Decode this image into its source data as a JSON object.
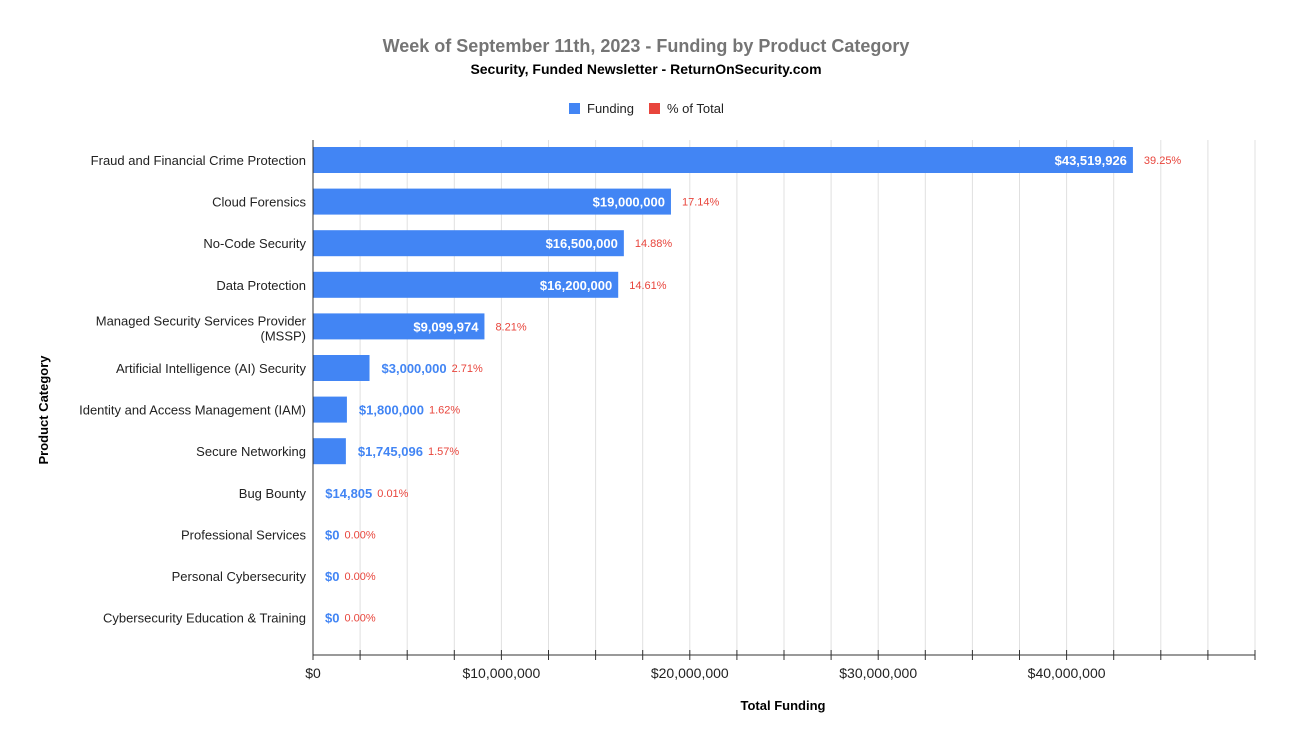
{
  "chart_data": {
    "type": "bar",
    "orientation": "horizontal",
    "title": "Week of September 11th, 2023 - Funding by Product Category",
    "subtitle": "Security, Funded Newsletter - ReturnOnSecurity.com",
    "xlabel": "Total Funding",
    "ylabel": "Product Category",
    "xlim": [
      0,
      50000000
    ],
    "grid": true,
    "legend_position": "top",
    "x_ticks": [
      {
        "value": 0,
        "label": "$0"
      },
      {
        "value": 10000000,
        "label": "$10,000,000"
      },
      {
        "value": 20000000,
        "label": "$20,000,000"
      },
      {
        "value": 30000000,
        "label": "$30,000,000"
      },
      {
        "value": 40000000,
        "label": "$40,000,000"
      }
    ],
    "categories": [
      "Fraud and Financial Crime Protection",
      "Cloud Forensics",
      "No-Code Security",
      "Data Protection",
      "Managed Security Services Provider (MSSP)",
      "Artificial Intelligence (AI) Security",
      "Identity and Access Management (IAM)",
      "Secure Networking",
      "Bug Bounty",
      "Professional Services",
      "Personal Cybersecurity",
      "Cybersecurity Education & Training"
    ],
    "series": [
      {
        "name": "Funding",
        "color": "#4285f4",
        "values": [
          43519926,
          19000000,
          16500000,
          16200000,
          9099974,
          3000000,
          1800000,
          1745096,
          14805,
          0,
          0,
          0
        ],
        "labels": [
          "$43,519,926",
          "$19,000,000",
          "$16,500,000",
          "$16,200,000",
          "$9,099,974",
          "$3,000,000",
          "$1,800,000",
          "$1,745,096",
          "$14,805",
          "$0",
          "$0",
          "$0"
        ]
      },
      {
        "name": "% of Total",
        "color": "#e8453c",
        "values": [
          39.25,
          17.14,
          14.88,
          14.61,
          8.21,
          2.71,
          1.62,
          1.57,
          0.01,
          0.0,
          0.0,
          0.0
        ],
        "labels": [
          "39.25%",
          "17.14%",
          "14.88%",
          "14.61%",
          "8.21%",
          "2.71%",
          "1.62%",
          "1.57%",
          "0.01%",
          "0.00%",
          "0.00%",
          "0.00%"
        ]
      }
    ]
  }
}
